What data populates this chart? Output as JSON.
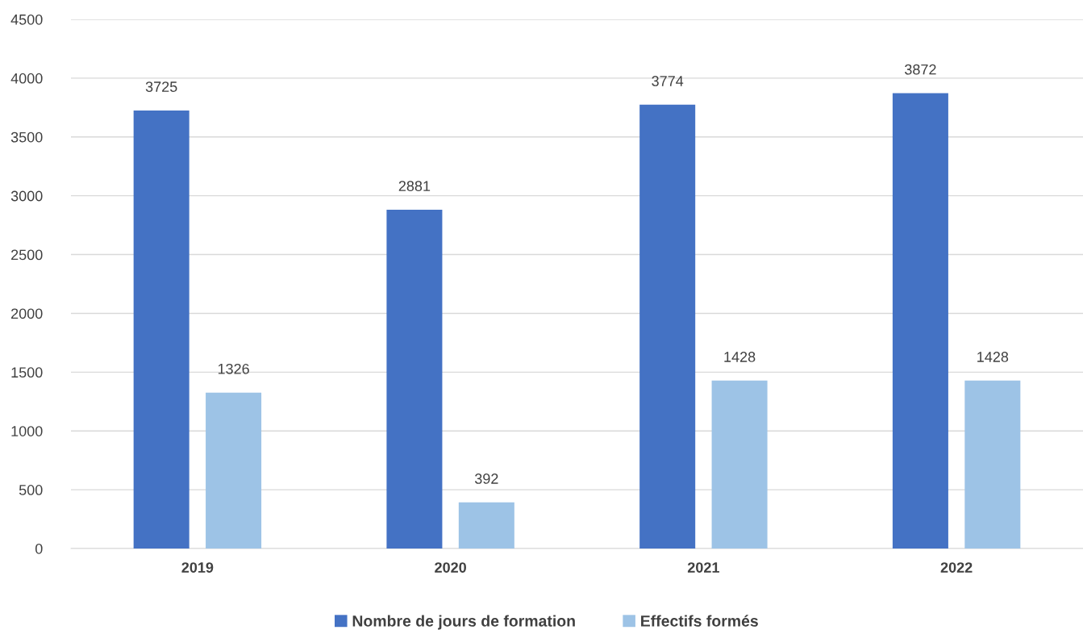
{
  "chart_data": {
    "type": "bar",
    "categories": [
      "2019",
      "2020",
      "2021",
      "2022"
    ],
    "series": [
      {
        "name": "Nombre de jours de formation",
        "color": "#4472c4",
        "values": [
          3725,
          2881,
          3774,
          3872
        ]
      },
      {
        "name": "Effectifs formés",
        "color": "#9dc3e6",
        "values": [
          1326,
          392,
          1428,
          1428
        ]
      }
    ],
    "ylim": [
      0,
      4500
    ],
    "yticks": [
      0,
      500,
      1000,
      1500,
      2000,
      2500,
      3000,
      3500,
      4000,
      4500
    ],
    "grid": "y",
    "legend": "bottom",
    "data_labels": true
  }
}
